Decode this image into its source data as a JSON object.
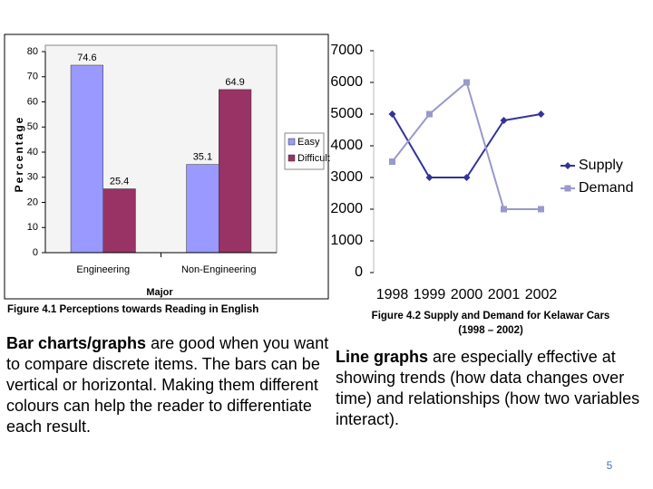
{
  "chart_data": [
    {
      "type": "bar",
      "x_label": "Major",
      "y_label": "Percentage",
      "categories": [
        "Engineering",
        "Non-Engineering"
      ],
      "series": [
        {
          "name": "Easy",
          "color": "#9999ff",
          "values": [
            74.6,
            35.1
          ]
        },
        {
          "name": "Difficult",
          "color": "#993366",
          "values": [
            25.4,
            64.9
          ]
        }
      ],
      "ylim": [
        0,
        80
      ],
      "yticks": [
        0,
        10,
        20,
        30,
        40,
        50,
        60,
        70,
        80
      ],
      "grid": false,
      "legend": "right"
    },
    {
      "type": "line",
      "categories": [
        "1998",
        "1999",
        "2000",
        "2001",
        "2002"
      ],
      "series": [
        {
          "name": "Supply",
          "color": "#333399",
          "marker": "diamond",
          "values": [
            5000,
            3000,
            3000,
            4800,
            5000
          ]
        },
        {
          "name": "Demand",
          "color": "#9999cc",
          "marker": "square",
          "values": [
            3500,
            5000,
            6000,
            2000,
            2000
          ]
        }
      ],
      "ylim": [
        0,
        7000
      ],
      "yticks": [
        0,
        1000,
        2000,
        3000,
        4000,
        5000,
        6000,
        7000
      ],
      "grid": false,
      "legend": "right"
    }
  ],
  "captions": [
    "Figure 4.1 Perceptions towards Reading in English",
    "Figure 4.2 Supply and Demand for Kelawar Cars",
    "(1998 – 2002)"
  ],
  "paragraphs": [
    {
      "lead": "Bar charts/graphs",
      "text": " are good when you want to compare discrete items. The bars can be vertical or horizontal. Making them different colours can help the reader to differentiate each result."
    },
    {
      "lead": "Line graphs",
      "text": " are especially effective at showing trends (how data changes over time) and relationships (how two variables interact)."
    }
  ],
  "page_number": "5"
}
